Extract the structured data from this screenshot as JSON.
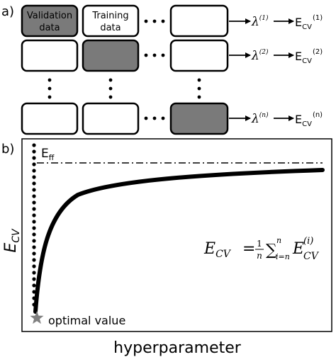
{
  "panel_a": {
    "label": "a)",
    "box_text": {
      "validation_line1": "Validation",
      "validation_line2": "data",
      "training_line1": "Training",
      "training_line2": "data"
    },
    "rows": [
      {
        "lambda": "λ",
        "lambda_sup": "(1)",
        "e": "E",
        "e_sub": "CV",
        "e_sup": "(1)"
      },
      {
        "lambda": "λ",
        "lambda_sup": "(2)",
        "e": "E",
        "e_sub": "CV",
        "e_sup": "(2)"
      },
      {
        "lambda": "λ",
        "lambda_sup": "(n)",
        "e": "E",
        "e_sub": "CV",
        "e_sup": "(n)"
      }
    ],
    "colors": {
      "held_out_fold": "#7a7a7a",
      "fold": "#ffffff"
    }
  },
  "panel_b": {
    "label": "b)",
    "y_label": "E",
    "y_label_sub": "CV",
    "x_label": "hyperparameter",
    "asymptote_label": "E",
    "asymptote_label_sub": "ff",
    "optimum_label": "optimal value",
    "formula": {
      "lhs": "E",
      "lhs_sub": "CV",
      "eq": "=",
      "frac_num": "1",
      "frac_den": "n",
      "sum": "∑",
      "sum_sub": "i=n",
      "sum_sup": "n",
      "term": "E",
      "term_sub": "CV",
      "term_sup": "(i)"
    },
    "colors": {
      "star": "#808080",
      "curve": "#000000"
    }
  }
}
